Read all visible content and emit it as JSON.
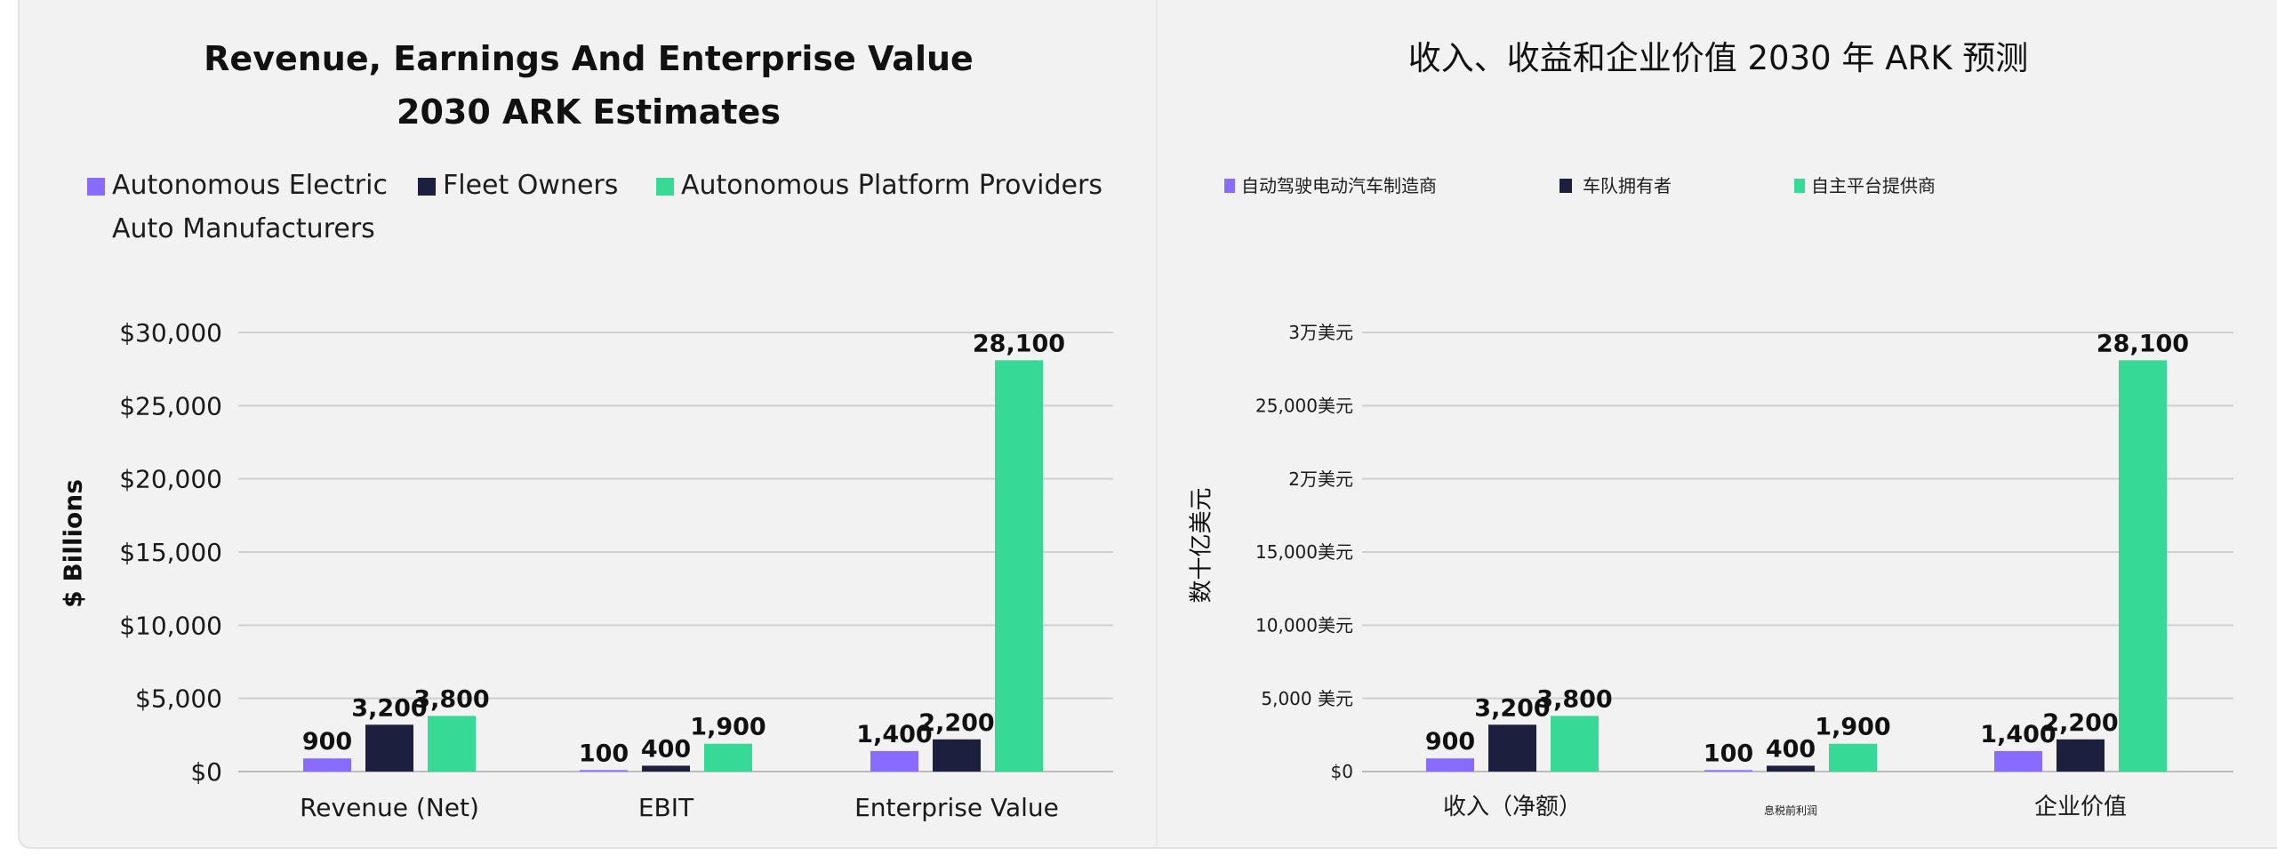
{
  "colors": {
    "autonomous_electric": "#8a6bff",
    "fleet_owners": "#1d1f3f",
    "platform_providers": "#37d996",
    "grid": "#cfcfcf",
    "text": "#111111"
  },
  "chart_data": [
    {
      "type": "bar",
      "title_line1": "Revenue, Earnings And Enterprise Value",
      "title_line2": "2030 ARK Estimates",
      "ylabel": "$ Billions",
      "xlabel": "",
      "ylim": [
        0,
        30000
      ],
      "yticks": [
        0,
        5000,
        10000,
        15000,
        20000,
        25000,
        30000
      ],
      "ytick_labels": [
        "$0",
        "$5,000",
        "$10,000",
        "$15,000",
        "$20,000",
        "$25,000",
        "$30,000"
      ],
      "categories": [
        "Revenue (Net)",
        "EBIT",
        "Enterprise Value"
      ],
      "legend_position": "top-left",
      "grid": true,
      "series": [
        {
          "name": "Autonomous Electric Auto Manufacturers",
          "legend_line1": "Autonomous Electric",
          "legend_line2": "Auto Manufacturers",
          "values": [
            900,
            100,
            1400
          ],
          "labels": [
            "900",
            "100",
            "1,400"
          ]
        },
        {
          "name": "Fleet Owners",
          "values": [
            3200,
            400,
            2200
          ],
          "labels": [
            "3,200",
            "400",
            "2,200"
          ]
        },
        {
          "name": "Autonomous Platform Providers",
          "values": [
            3800,
            1900,
            28100
          ],
          "labels": [
            "3,800",
            "1,900",
            "28,100"
          ]
        }
      ]
    },
    {
      "type": "bar",
      "title": "收入、收益和企业价值 2030 年 ARK 预测",
      "ylabel": "数十亿美元",
      "xlabel": "",
      "ylim": [
        0,
        30000
      ],
      "yticks": [
        0,
        5000,
        10000,
        15000,
        20000,
        25000,
        30000
      ],
      "ytick_labels": [
        "$0",
        "5,000 美元",
        "10,000美元",
        "15,000美元",
        "2万美元",
        "25,000美元",
        "3万美元"
      ],
      "categories": [
        "收入（净额）",
        "息税前利润",
        "企业价值"
      ],
      "legend_position": "top-left",
      "grid": true,
      "series": [
        {
          "name": "自动驾驶电动汽车制造商",
          "values": [
            900,
            100,
            1400
          ],
          "labels": [
            "900",
            "100",
            "1,400"
          ]
        },
        {
          "name": "车队拥有者",
          "values": [
            3200,
            400,
            2200
          ],
          "labels": [
            "3,200",
            "400",
            "2,200"
          ]
        },
        {
          "name": "自主平台提供商",
          "values": [
            3800,
            1900,
            28100
          ],
          "labels": [
            "3,800",
            "1,900",
            "28,100"
          ]
        }
      ]
    }
  ]
}
